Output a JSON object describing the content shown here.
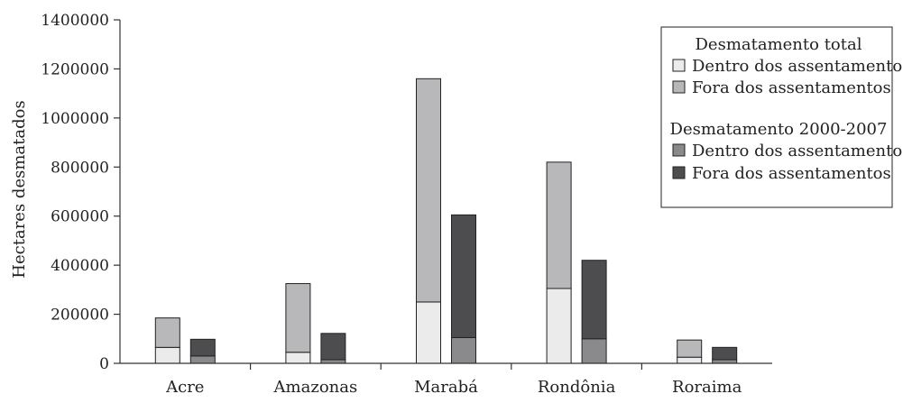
{
  "chart_data": {
    "type": "bar",
    "stacked": true,
    "grouped": true,
    "ylabel": "Hectares desmatados",
    "xlabel": "",
    "ylim": [
      0,
      1400000
    ],
    "yticks": [
      0,
      200000,
      400000,
      600000,
      800000,
      1000000,
      1200000,
      1400000
    ],
    "ytick_labels": [
      "0",
      "200000",
      "400000",
      "600000",
      "800000",
      "1000000",
      "1200000",
      "1400000"
    ],
    "categories": [
      "Acre",
      "Amazonas",
      "Marabá",
      "Rondônia",
      "Roraima"
    ],
    "grid": false,
    "legend_position": "top-right",
    "groups": [
      {
        "title": "Desmatamento total",
        "series": [
          {
            "name": "Dentro dos assentamentos",
            "color": "#ebebeb",
            "values": [
              65000,
              45000,
              250000,
              305000,
              25000
            ]
          },
          {
            "name": "Fora dos assentamentos",
            "color": "#b8b8bb",
            "values": [
              120000,
              280000,
              910000,
              515000,
              70000
            ]
          }
        ]
      },
      {
        "title": "Desmatamento 2000-2007",
        "series": [
          {
            "name": "Dentro dos assentamentos",
            "color": "#8a8a8d",
            "values": [
              30000,
              15000,
              105000,
              100000,
              15000
            ]
          },
          {
            "name": "Fora dos assentamentos",
            "color": "#4d4d4f",
            "values": [
              68000,
              107000,
              500000,
              320000,
              50000
            ]
          }
        ]
      }
    ]
  }
}
